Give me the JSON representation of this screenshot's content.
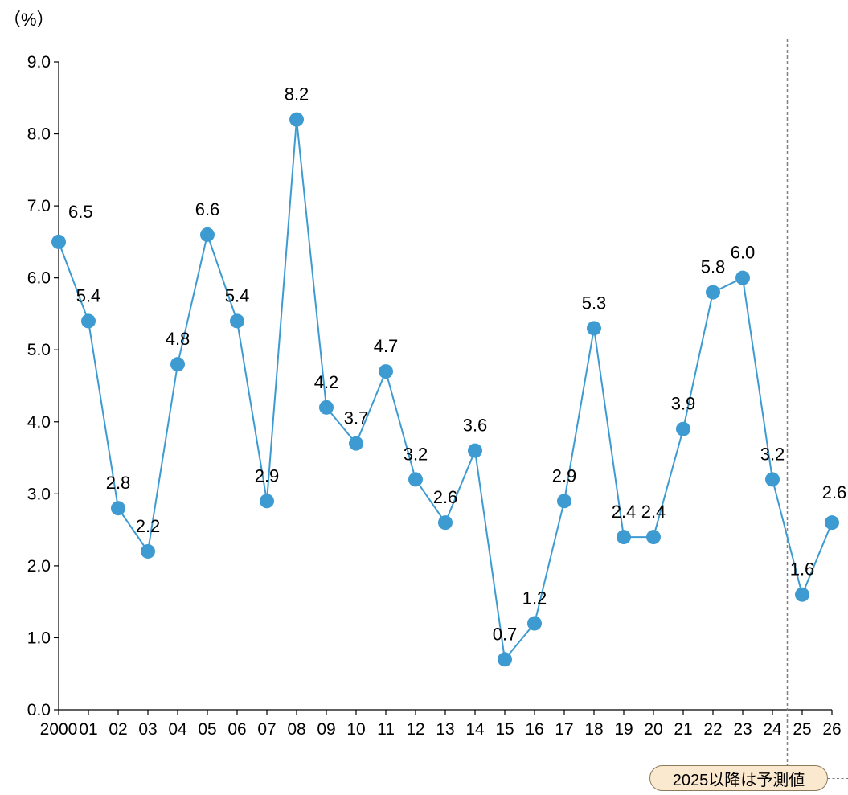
{
  "chart_data": {
    "type": "line",
    "unit_label": "（%）",
    "ylim": [
      0,
      9
    ],
    "y_ticks": [
      "0.0",
      "1.0",
      "2.0",
      "3.0",
      "4.0",
      "5.0",
      "6.0",
      "7.0",
      "8.0",
      "9.0"
    ],
    "categories": [
      "2000",
      "01",
      "02",
      "03",
      "04",
      "05",
      "06",
      "07",
      "08",
      "09",
      "10",
      "11",
      "12",
      "13",
      "14",
      "15",
      "16",
      "17",
      "18",
      "19",
      "20",
      "21",
      "22",
      "23",
      "24",
      "25",
      "26"
    ],
    "values": [
      6.5,
      5.4,
      2.8,
      2.2,
      4.8,
      6.6,
      5.4,
      2.9,
      8.2,
      4.2,
      3.7,
      4.7,
      3.2,
      2.6,
      3.6,
      0.7,
      1.2,
      2.9,
      5.3,
      2.4,
      2.4,
      3.9,
      5.8,
      6.0,
      3.2,
      1.6,
      2.6
    ],
    "data_labels": [
      "6.5",
      "5.4",
      "2.8",
      "2.2",
      "4.8",
      "6.6",
      "5.4",
      "2.9",
      "8.2",
      "4.2",
      "3.7",
      "4.7",
      "3.2",
      "2.6",
      "3.6",
      "0.7",
      "1.2",
      "2.9",
      "5.3",
      "2.4",
      "2.4",
      "3.9",
      "5.8",
      "6.0",
      "3.2",
      "1.6",
      "2.6"
    ],
    "forecast_start": "25",
    "forecast_note": "2025以降は予測値",
    "colors": {
      "line": "#3d9bd1",
      "marker": "#3d9bd1",
      "axis": "#000000",
      "divider": "#808080"
    }
  }
}
